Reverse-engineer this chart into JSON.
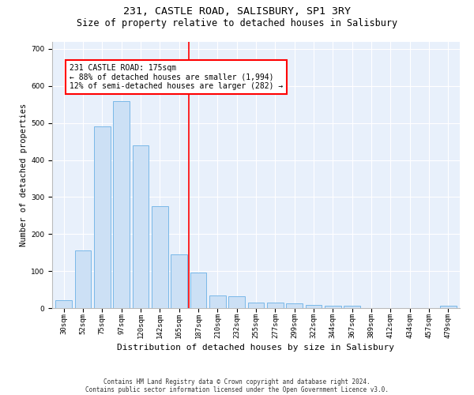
{
  "title1": "231, CASTLE ROAD, SALISBURY, SP1 3RY",
  "title2": "Size of property relative to detached houses in Salisbury",
  "xlabel": "Distribution of detached houses by size in Salisbury",
  "ylabel": "Number of detached properties",
  "footnote1": "Contains HM Land Registry data © Crown copyright and database right 2024.",
  "footnote2": "Contains public sector information licensed under the Open Government Licence v3.0.",
  "bar_labels": [
    "30sqm",
    "52sqm",
    "75sqm",
    "97sqm",
    "120sqm",
    "142sqm",
    "165sqm",
    "187sqm",
    "210sqm",
    "232sqm",
    "255sqm",
    "277sqm",
    "299sqm",
    "322sqm",
    "344sqm",
    "367sqm",
    "389sqm",
    "412sqm",
    "434sqm",
    "457sqm",
    "479sqm"
  ],
  "bar_values": [
    22,
    155,
    490,
    558,
    440,
    275,
    145,
    97,
    35,
    33,
    15,
    15,
    12,
    8,
    6,
    6,
    0,
    0,
    0,
    0,
    6
  ],
  "bar_color": "#cce0f5",
  "bar_edgecolor": "#7ab8e8",
  "bar_width": 0.85,
  "vline_x": 6.5,
  "vline_color": "red",
  "annotation_text": "231 CASTLE ROAD: 175sqm\n← 88% of detached houses are smaller (1,994)\n12% of semi-detached houses are larger (282) →",
  "ylim": [
    0,
    720
  ],
  "yticks": [
    0,
    100,
    200,
    300,
    400,
    500,
    600,
    700
  ],
  "bg_color": "#e8f0fb",
  "grid_color": "#ffffff",
  "title1_fontsize": 9.5,
  "title2_fontsize": 8.5,
  "xlabel_fontsize": 8,
  "ylabel_fontsize": 7.5,
  "tick_fontsize": 6.5,
  "annot_fontsize": 7,
  "footnote_fontsize": 5.5
}
